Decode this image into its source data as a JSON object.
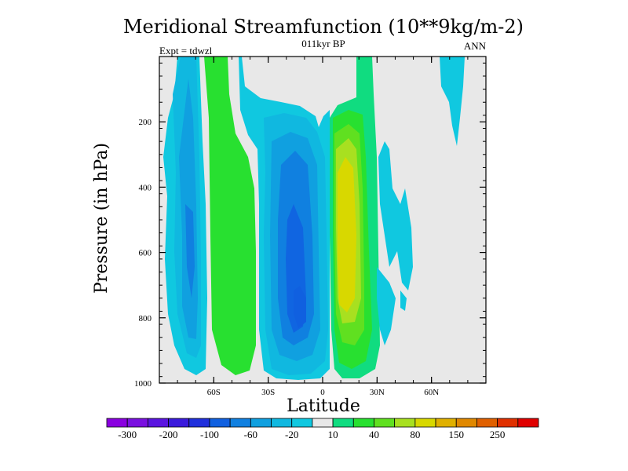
{
  "chart_data": {
    "type": "heatmap",
    "title": "Meridional Streamfunction (10**9kg/m-2)",
    "subtitle": "011kyr BP",
    "left_label": "Expt = tdwzl",
    "right_label": "ANN",
    "xlabel": "Latitude",
    "ylabel": "Pressure (in hPa)",
    "xlim": [
      -90,
      90
    ],
    "ylim": [
      1000,
      0
    ],
    "x_ticks": [
      {
        "value": -60,
        "label": "60S"
      },
      {
        "value": -30,
        "label": "30S"
      },
      {
        "value": 0,
        "label": "0"
      },
      {
        "value": 30,
        "label": "30N"
      },
      {
        "value": 60,
        "label": "60N"
      }
    ],
    "y_ticks": [
      {
        "value": 200,
        "label": "200"
      },
      {
        "value": 400,
        "label": "400"
      },
      {
        "value": 600,
        "label": "600"
      },
      {
        "value": 800,
        "label": "800"
      },
      {
        "value": 1000,
        "label": "1000"
      }
    ],
    "background_color": "#e8e8e8",
    "colorbar": {
      "colors": [
        "#8a00e0",
        "#7a10e0",
        "#5a14e0",
        "#3a1adc",
        "#2030dc",
        "#1060e0",
        "#1080e0",
        "#10a0e0",
        "#10b8e0",
        "#10c8e0",
        "#e8e8e8",
        "#10dc80",
        "#28e030",
        "#60e020",
        "#a8e020",
        "#d8d800",
        "#e0b000",
        "#e08800",
        "#e06000",
        "#e03000",
        "#e00000"
      ],
      "labels": [
        {
          "after_index": 0,
          "text": "-300"
        },
        {
          "after_index": 2,
          "text": "-200"
        },
        {
          "after_index": 4,
          "text": "-100"
        },
        {
          "after_index": 6,
          "text": "-60"
        },
        {
          "after_index": 8,
          "text": "-20"
        },
        {
          "after_index": 10,
          "text": "10"
        },
        {
          "after_index": 12,
          "text": "40"
        },
        {
          "after_index": 14,
          "text": "80"
        },
        {
          "after_index": 16,
          "text": "150"
        },
        {
          "after_index": 18,
          "text": "250"
        }
      ]
    },
    "cells": [
      {
        "name": "sh-extratropical-cell",
        "center_lat": -75,
        "level": -40,
        "color": "#10a0e0"
      },
      {
        "name": "sh-ferrel-cell",
        "center_lat": -55,
        "level": 40,
        "color": "#28e030"
      },
      {
        "name": "sh-hadley-cell",
        "center_lat": -12,
        "level": -100,
        "color": "#1060e0"
      },
      {
        "name": "nh-hadley-cell",
        "center_lat": 10,
        "level": 80,
        "color": "#d8d800"
      },
      {
        "name": "nh-ferrel-cell",
        "center_lat": 40,
        "level": -20,
        "color": "#10c8e0"
      },
      {
        "name": "nh-polar-cell",
        "center_lat": 75,
        "level": -20,
        "color": "#10c8e0"
      }
    ]
  }
}
